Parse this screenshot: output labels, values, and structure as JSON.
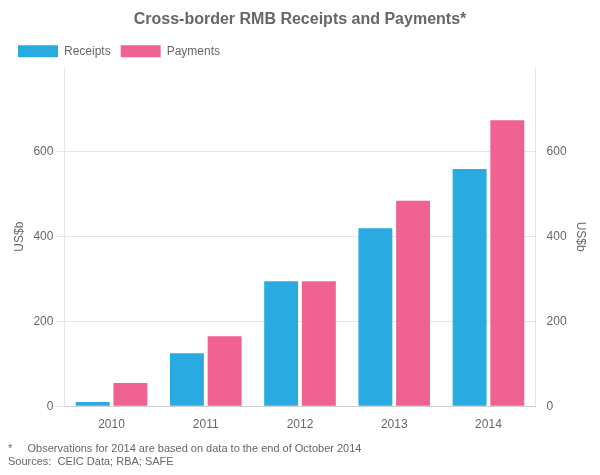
{
  "chart_data": {
    "type": "bar",
    "title": "Cross-border RMB Receipts and Payments*",
    "categories": [
      "2010",
      "2011",
      "2012",
      "2013",
      "2014"
    ],
    "series": [
      {
        "name": "Receipts",
        "color": "#29abe2",
        "values": [
          10,
          125,
          295,
          420,
          560
        ]
      },
      {
        "name": "Payments",
        "color": "#f06292",
        "values": [
          55,
          165,
          295,
          485,
          675
        ]
      }
    ],
    "ylabel": "US$b",
    "y2label": "US$b",
    "ylim": [
      0,
      800
    ],
    "yticks": [
      0,
      200,
      400,
      600
    ],
    "y2lim": [
      0,
      800
    ],
    "y2ticks": [
      0,
      200,
      400,
      600
    ],
    "grid": true,
    "legend": "upper left",
    "annotations": [
      "*     Observations for 2014 are based on data to the end of October 2014",
      "Sources:  CEIC Data; RBA; SAFE"
    ]
  }
}
